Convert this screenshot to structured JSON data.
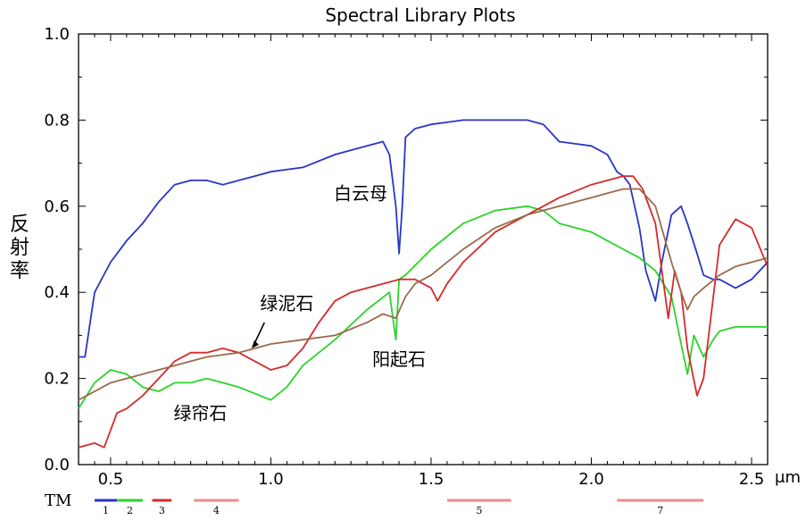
{
  "chart_data": {
    "type": "line",
    "title": "Spectral Library Plots",
    "xlabel": "μm",
    "ylabel": "反射率",
    "xlim": [
      0.4,
      2.55
    ],
    "ylim": [
      0.0,
      1.0
    ],
    "x_ticks": [
      0.5,
      1.0,
      1.5,
      2.0,
      2.5
    ],
    "x_tick_labels": [
      "0.5",
      "1.0",
      "1.5",
      "2.0",
      "2.5"
    ],
    "y_ticks": [
      0.0,
      0.2,
      0.4,
      0.6,
      0.8,
      1.0
    ],
    "y_tick_labels": [
      "0.0",
      "0.2",
      "0.4",
      "0.6",
      "0.8",
      "1.0"
    ],
    "grid": false,
    "series": [
      {
        "name": "白云母",
        "color": "#2a35c8",
        "x": [
          0.4,
          0.42,
          0.45,
          0.5,
          0.55,
          0.6,
          0.65,
          0.7,
          0.75,
          0.8,
          0.85,
          0.9,
          0.95,
          1.0,
          1.1,
          1.2,
          1.3,
          1.35,
          1.37,
          1.39,
          1.4,
          1.41,
          1.42,
          1.45,
          1.5,
          1.6,
          1.7,
          1.8,
          1.85,
          1.9,
          2.0,
          2.05,
          2.08,
          2.1,
          2.12,
          2.15,
          2.17,
          2.2,
          2.22,
          2.25,
          2.28,
          2.3,
          2.33,
          2.35,
          2.38,
          2.4,
          2.45,
          2.5,
          2.55
        ],
        "values": [
          0.25,
          0.25,
          0.4,
          0.47,
          0.52,
          0.56,
          0.61,
          0.65,
          0.66,
          0.66,
          0.65,
          0.66,
          0.67,
          0.68,
          0.69,
          0.72,
          0.74,
          0.75,
          0.72,
          0.6,
          0.49,
          0.6,
          0.76,
          0.78,
          0.79,
          0.8,
          0.8,
          0.8,
          0.79,
          0.75,
          0.74,
          0.72,
          0.68,
          0.67,
          0.65,
          0.55,
          0.45,
          0.38,
          0.47,
          0.58,
          0.6,
          0.56,
          0.49,
          0.44,
          0.43,
          0.43,
          0.41,
          0.43,
          0.47
        ]
      },
      {
        "name": "阳起石",
        "color": "#2ad42a",
        "x": [
          0.4,
          0.45,
          0.5,
          0.55,
          0.6,
          0.65,
          0.7,
          0.75,
          0.8,
          0.9,
          1.0,
          1.05,
          1.1,
          1.2,
          1.3,
          1.37,
          1.39,
          1.4,
          1.42,
          1.5,
          1.6,
          1.7,
          1.8,
          1.85,
          1.9,
          1.95,
          2.0,
          2.05,
          2.1,
          2.15,
          2.2,
          2.25,
          2.28,
          2.3,
          2.32,
          2.35,
          2.38,
          2.4,
          2.45,
          2.5,
          2.55
        ],
        "values": [
          0.13,
          0.19,
          0.22,
          0.21,
          0.18,
          0.17,
          0.19,
          0.19,
          0.2,
          0.18,
          0.15,
          0.18,
          0.23,
          0.29,
          0.36,
          0.4,
          0.29,
          0.43,
          0.44,
          0.5,
          0.56,
          0.59,
          0.6,
          0.59,
          0.56,
          0.55,
          0.54,
          0.52,
          0.5,
          0.48,
          0.45,
          0.39,
          0.28,
          0.21,
          0.3,
          0.25,
          0.29,
          0.31,
          0.32,
          0.32,
          0.32
        ]
      },
      {
        "name": "绿帘石",
        "color": "#d42a2a",
        "x": [
          0.4,
          0.45,
          0.48,
          0.5,
          0.52,
          0.55,
          0.6,
          0.65,
          0.7,
          0.75,
          0.8,
          0.85,
          0.9,
          0.95,
          1.0,
          1.05,
          1.1,
          1.15,
          1.2,
          1.25,
          1.3,
          1.35,
          1.4,
          1.45,
          1.5,
          1.52,
          1.55,
          1.6,
          1.7,
          1.8,
          1.85,
          1.9,
          2.0,
          2.05,
          2.1,
          2.13,
          2.16,
          2.2,
          2.24,
          2.26,
          2.28,
          2.3,
          2.33,
          2.35,
          2.4,
          2.45,
          2.5,
          2.55
        ],
        "values": [
          0.04,
          0.05,
          0.04,
          0.08,
          0.12,
          0.13,
          0.16,
          0.2,
          0.24,
          0.26,
          0.26,
          0.27,
          0.26,
          0.24,
          0.22,
          0.23,
          0.27,
          0.33,
          0.38,
          0.4,
          0.41,
          0.42,
          0.43,
          0.43,
          0.41,
          0.38,
          0.42,
          0.47,
          0.54,
          0.58,
          0.6,
          0.62,
          0.65,
          0.66,
          0.67,
          0.67,
          0.64,
          0.56,
          0.34,
          0.45,
          0.4,
          0.27,
          0.16,
          0.2,
          0.51,
          0.57,
          0.55,
          0.46
        ]
      },
      {
        "name": "绿泥石",
        "color": "#9a6a4a",
        "x": [
          0.4,
          0.45,
          0.5,
          0.55,
          0.6,
          0.65,
          0.7,
          0.8,
          0.9,
          1.0,
          1.1,
          1.2,
          1.3,
          1.35,
          1.39,
          1.42,
          1.45,
          1.5,
          1.6,
          1.7,
          1.8,
          1.9,
          2.0,
          2.05,
          2.1,
          2.15,
          2.2,
          2.25,
          2.28,
          2.3,
          2.32,
          2.35,
          2.4,
          2.45,
          2.5,
          2.55
        ],
        "values": [
          0.15,
          0.17,
          0.19,
          0.2,
          0.21,
          0.22,
          0.23,
          0.25,
          0.26,
          0.28,
          0.29,
          0.3,
          0.33,
          0.35,
          0.34,
          0.39,
          0.42,
          0.44,
          0.5,
          0.55,
          0.58,
          0.6,
          0.62,
          0.63,
          0.64,
          0.64,
          0.6,
          0.47,
          0.4,
          0.36,
          0.39,
          0.41,
          0.44,
          0.46,
          0.47,
          0.48
        ]
      }
    ],
    "annotations": [
      {
        "text": "白云母",
        "series": "白云母"
      },
      {
        "text": "绿泥石",
        "series": "绿泥石"
      },
      {
        "text": "阳起石",
        "series": "阳起石"
      },
      {
        "text": "绿帘石",
        "series": "绿帘石"
      }
    ],
    "tm_bands": {
      "label": "TM",
      "bands": [
        {
          "label": "1",
          "range": [
            0.45,
            0.52
          ],
          "color": "#2a35c8"
        },
        {
          "label": "2",
          "range": [
            0.52,
            0.6
          ],
          "color": "#2ad42a"
        },
        {
          "label": "3",
          "range": [
            0.63,
            0.69
          ],
          "color": "#d42a2a"
        },
        {
          "label": "4",
          "range": [
            0.76,
            0.9
          ],
          "color": "#f08a8a"
        },
        {
          "label": "5",
          "range": [
            1.55,
            1.75
          ],
          "color": "#f08a8a"
        },
        {
          "label": "7",
          "range": [
            2.08,
            2.35
          ],
          "color": "#f08a8a"
        }
      ]
    }
  }
}
